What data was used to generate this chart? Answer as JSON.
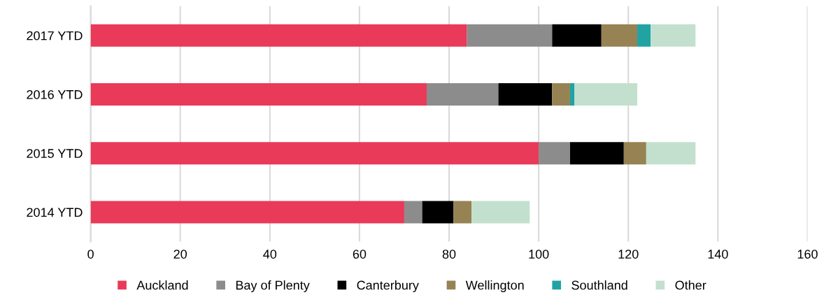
{
  "chart_data": {
    "type": "bar",
    "orientation": "horizontal",
    "stacked": true,
    "categories": [
      "2017 YTD",
      "2016 YTD",
      "2015 YTD",
      "2014 YTD"
    ],
    "series": [
      {
        "name": "Auckland",
        "color": "#e93a59",
        "values": [
          84,
          75,
          100,
          70
        ]
      },
      {
        "name": "Bay of Plenty",
        "color": "#8c8c8c",
        "values": [
          19,
          16,
          7,
          4
        ]
      },
      {
        "name": "Canterbury",
        "color": "#000000",
        "values": [
          11,
          12,
          12,
          7
        ]
      },
      {
        "name": "Wellington",
        "color": "#978254",
        "values": [
          8,
          4,
          5,
          4
        ]
      },
      {
        "name": "Southland",
        "color": "#21a3a3",
        "values": [
          3,
          1,
          0,
          0
        ]
      },
      {
        "name": "Other",
        "color": "#c3e0cf",
        "values": [
          10,
          14,
          11,
          13
        ]
      }
    ],
    "xlim": [
      0,
      160
    ],
    "xticks": [
      0,
      20,
      40,
      60,
      80,
      100,
      120,
      140,
      160
    ],
    "grid": "x",
    "legend": "bottom"
  }
}
